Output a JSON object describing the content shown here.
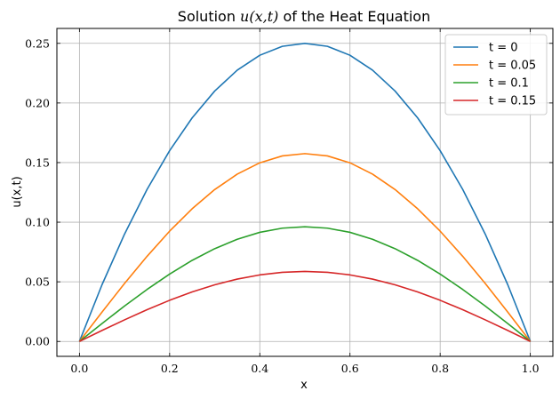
{
  "chart_data": {
    "type": "line",
    "title_prefix": "Solution ",
    "title_math": "u(x,t)",
    "title_suffix": " of the Heat Equation",
    "xlabel": "x",
    "ylabel": "u(x,t)",
    "xlim": [
      -0.05,
      1.05
    ],
    "ylim": [
      -0.0125,
      0.2625
    ],
    "xticks": [
      0.0,
      0.2,
      0.4,
      0.6,
      0.8,
      1.0
    ],
    "xtick_labels": [
      "0.0",
      "0.2",
      "0.4",
      "0.6",
      "0.8",
      "1.0"
    ],
    "yticks": [
      0.0,
      0.05,
      0.1,
      0.15,
      0.2,
      0.25
    ],
    "ytick_labels": [
      "0.00",
      "0.05",
      "0.10",
      "0.15",
      "0.20",
      "0.25"
    ],
    "grid": true,
    "legend_position": "top-right",
    "x": [
      0.0,
      0.05,
      0.1,
      0.15,
      0.2,
      0.25,
      0.3,
      0.35,
      0.4,
      0.45,
      0.5,
      0.55,
      0.6,
      0.65,
      0.7,
      0.75,
      0.8,
      0.85,
      0.9,
      0.95,
      1.0
    ],
    "series": [
      {
        "name": "t = 0",
        "color": "#1f77b4",
        "values": [
          0.0,
          0.0475,
          0.09,
          0.1275,
          0.16,
          0.1875,
          0.21,
          0.2275,
          0.24,
          0.2475,
          0.25,
          0.2475,
          0.24,
          0.2275,
          0.21,
          0.1875,
          0.16,
          0.1275,
          0.09,
          0.0475,
          0.0
        ]
      },
      {
        "name": "t = 0.05",
        "color": "#ff7f0e",
        "values": [
          0.0,
          0.0246,
          0.0486,
          0.0714,
          0.0925,
          0.1113,
          0.1274,
          0.1403,
          0.1498,
          0.1556,
          0.1575,
          0.1556,
          0.1498,
          0.1403,
          0.1274,
          0.1113,
          0.0925,
          0.0714,
          0.0486,
          0.0246,
          0.0
        ]
      },
      {
        "name": "t = 0.1",
        "color": "#2ca02c",
        "values": [
          0.0,
          0.015,
          0.0297,
          0.0436,
          0.0565,
          0.068,
          0.0778,
          0.0857,
          0.0915,
          0.095,
          0.0962,
          0.095,
          0.0915,
          0.0857,
          0.0778,
          0.068,
          0.0565,
          0.0436,
          0.0297,
          0.015,
          0.0
        ]
      },
      {
        "name": "t = 0.15",
        "color": "#d62728",
        "values": [
          0.0,
          0.0092,
          0.0181,
          0.0266,
          0.0345,
          0.0415,
          0.0475,
          0.0523,
          0.0558,
          0.058,
          0.0587,
          0.058,
          0.0558,
          0.0523,
          0.0475,
          0.0415,
          0.0345,
          0.0266,
          0.0181,
          0.0092,
          0.0
        ]
      }
    ]
  }
}
